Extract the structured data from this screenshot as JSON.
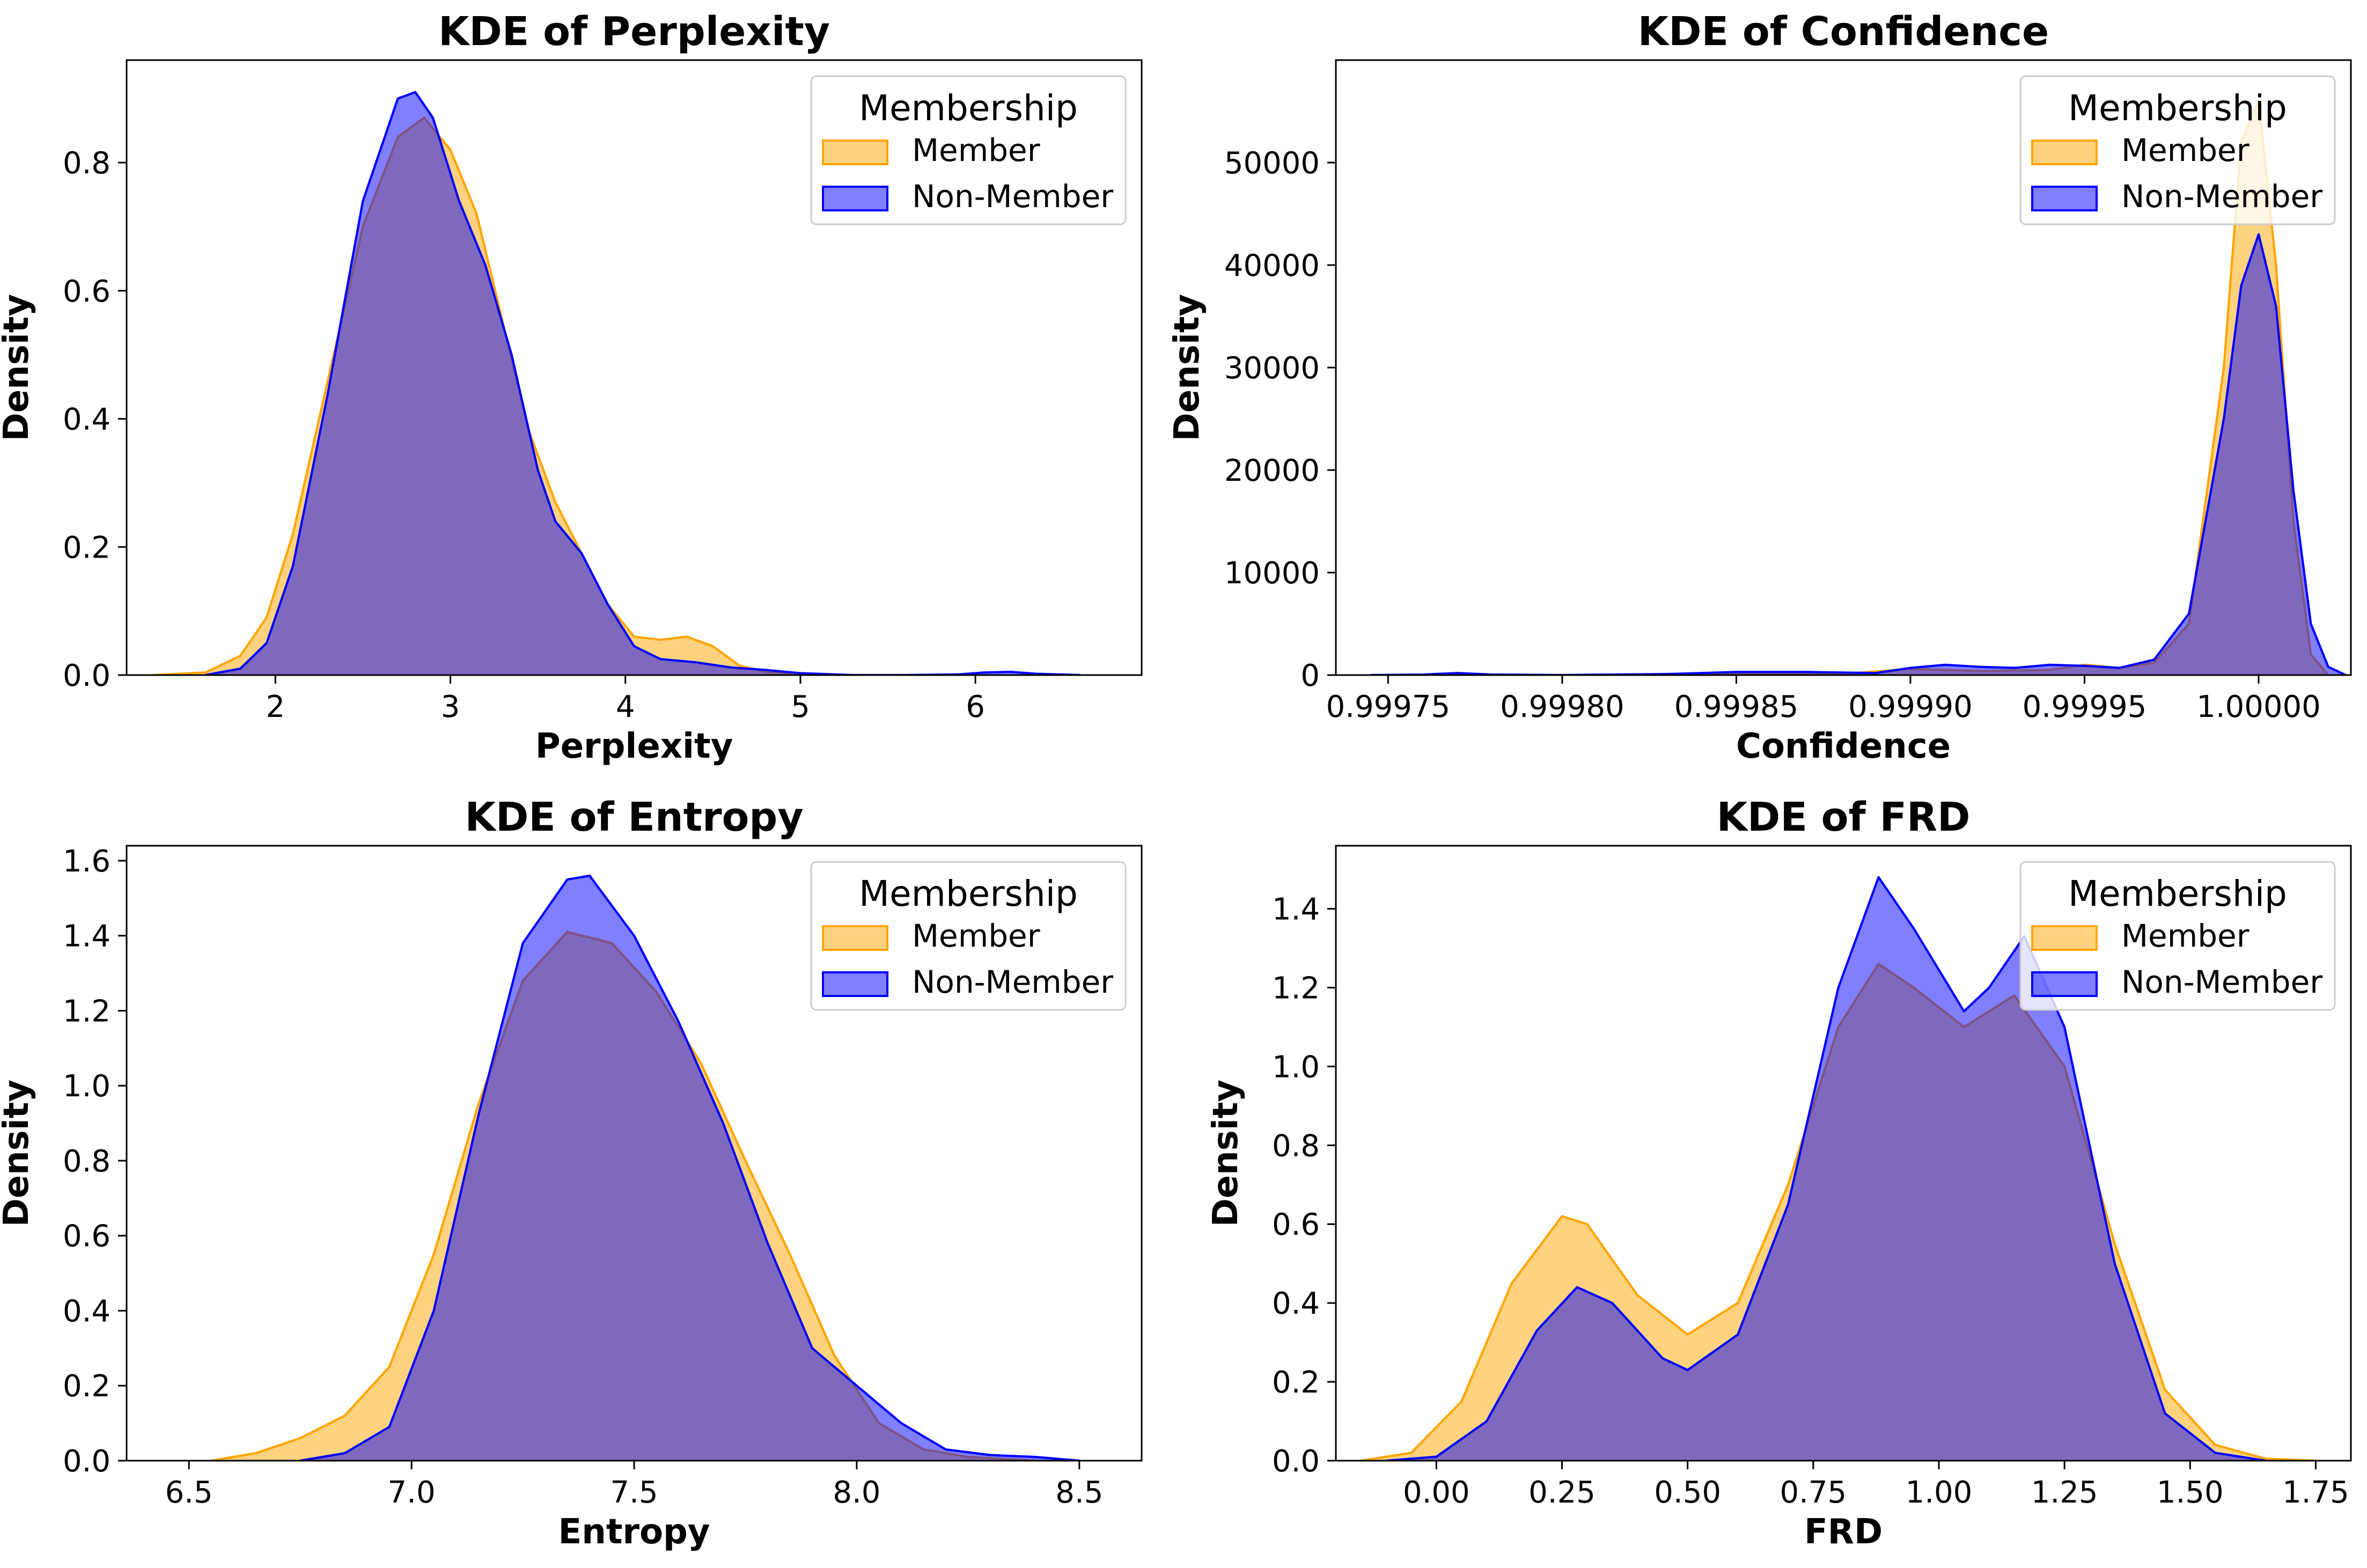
{
  "colors": {
    "member": "#FFA500",
    "non_member": "#0000FF"
  },
  "chart_data": [
    {
      "type": "area",
      "title": "KDE of Perplexity",
      "xlabel": "Perplexity",
      "ylabel": "Density",
      "xlim": [
        1.15,
        6.95
      ],
      "ylim": [
        0,
        0.96
      ],
      "xticks": [
        2,
        3,
        4,
        5,
        6
      ],
      "xtick_labels": [
        "2",
        "3",
        "4",
        "5",
        "6"
      ],
      "yticks": [
        0.0,
        0.2,
        0.4,
        0.6,
        0.8
      ],
      "ytick_labels": [
        "0.0",
        "0.2",
        "0.4",
        "0.6",
        "0.8"
      ],
      "legend": {
        "title": "Membership",
        "placement": "top-right"
      },
      "grid": false,
      "series": [
        {
          "name": "Member",
          "color": "#FFA500",
          "x": [
            1.3,
            1.6,
            1.8,
            1.95,
            2.1,
            2.3,
            2.5,
            2.7,
            2.85,
            3.0,
            3.15,
            3.3,
            3.45,
            3.6,
            3.75,
            3.9,
            4.05,
            4.2,
            4.35,
            4.5,
            4.65,
            4.8,
            5.0,
            5.3
          ],
          "y": [
            0.0,
            0.004,
            0.03,
            0.09,
            0.22,
            0.46,
            0.7,
            0.84,
            0.87,
            0.82,
            0.72,
            0.55,
            0.38,
            0.27,
            0.19,
            0.11,
            0.06,
            0.055,
            0.06,
            0.045,
            0.015,
            0.005,
            0.002,
            0.0
          ]
        },
        {
          "name": "Non-Member",
          "color": "#0000FF",
          "x": [
            1.6,
            1.8,
            1.95,
            2.1,
            2.3,
            2.5,
            2.7,
            2.8,
            2.9,
            3.05,
            3.2,
            3.35,
            3.5,
            3.6,
            3.75,
            3.9,
            4.05,
            4.2,
            4.4,
            4.6,
            4.8,
            5.0,
            5.3,
            5.6,
            5.9,
            6.05,
            6.2,
            6.35,
            6.6
          ],
          "y": [
            0.0,
            0.01,
            0.05,
            0.17,
            0.44,
            0.74,
            0.9,
            0.91,
            0.87,
            0.74,
            0.64,
            0.5,
            0.32,
            0.24,
            0.19,
            0.11,
            0.045,
            0.025,
            0.02,
            0.012,
            0.008,
            0.003,
            0.0,
            0.0,
            0.001,
            0.004,
            0.005,
            0.002,
            0.0
          ]
        }
      ]
    },
    {
      "type": "area",
      "title": "KDE of Confidence",
      "xlabel": "Confidence",
      "ylabel": "Density",
      "xlim": [
        0.999735,
        1.0000265
      ],
      "ylim": [
        0,
        60000
      ],
      "xticks": [
        0.99975,
        0.9998,
        0.99985,
        0.9999,
        0.99995,
        1.0
      ],
      "xtick_labels": [
        "0.99975",
        "0.99980",
        "0.99985",
        "0.99990",
        "0.99995",
        "1.00000"
      ],
      "yticks": [
        0,
        10000,
        20000,
        30000,
        40000,
        50000
      ],
      "ytick_labels": [
        "0",
        "10000",
        "20000",
        "30000",
        "40000",
        "50000"
      ],
      "legend": {
        "title": "Membership",
        "placement": "top-right"
      },
      "grid": false,
      "series": [
        {
          "name": "Member",
          "color": "#FFA500",
          "x": [
            0.99983,
            0.99985,
            0.99988,
            0.9999,
            0.99992,
            0.99994,
            0.99995,
            0.99996,
            0.99997,
            0.99998,
            0.99999,
            0.999995,
            1.0,
            1.000005,
            1.00001,
            1.000015,
            1.00002
          ],
          "y": [
            0,
            150,
            100,
            600,
            400,
            500,
            1000,
            700,
            1200,
            5000,
            30000,
            52000,
            56000,
            40000,
            15000,
            2000,
            0
          ]
        },
        {
          "name": "Non-Member",
          "color": "#0000FF",
          "x": [
            0.999745,
            0.99976,
            0.99977,
            0.99978,
            0.9998,
            0.99983,
            0.99985,
            0.99987,
            0.99989,
            0.9999,
            0.99991,
            0.99992,
            0.99993,
            0.99994,
            0.99995,
            0.99996,
            0.99997,
            0.99998,
            0.99999,
            0.999995,
            1.0,
            1.000005,
            1.00001,
            1.000015,
            1.00002,
            1.000025
          ],
          "y": [
            0,
            50,
            200,
            50,
            0,
            100,
            300,
            300,
            200,
            700,
            1000,
            800,
            700,
            1000,
            900,
            700,
            1500,
            6000,
            25000,
            38000,
            43000,
            36000,
            18000,
            5000,
            800,
            0
          ]
        }
      ]
    },
    {
      "type": "area",
      "title": "KDE of Entropy",
      "xlabel": "Entropy",
      "ylabel": "Density",
      "xlim": [
        6.36,
        8.64
      ],
      "ylim": [
        0,
        1.64
      ],
      "xticks": [
        6.5,
        7.0,
        7.5,
        8.0,
        8.5
      ],
      "xtick_labels": [
        "6.5",
        "7.0",
        "7.5",
        "8.0",
        "8.5"
      ],
      "yticks": [
        0.0,
        0.2,
        0.4,
        0.6,
        0.8,
        1.0,
        1.2,
        1.4,
        1.6
      ],
      "ytick_labels": [
        "0.0",
        "0.2",
        "0.4",
        "0.6",
        "0.8",
        "1.0",
        "1.2",
        "1.4",
        "1.6"
      ],
      "legend": {
        "title": "Membership",
        "placement": "top-right"
      },
      "grid": false,
      "series": [
        {
          "name": "Member",
          "color": "#FFA500",
          "x": [
            6.55,
            6.65,
            6.75,
            6.85,
            6.95,
            7.05,
            7.15,
            7.25,
            7.35,
            7.45,
            7.55,
            7.65,
            7.75,
            7.85,
            7.95,
            8.05,
            8.15,
            8.25,
            8.4
          ],
          "y": [
            0.0,
            0.02,
            0.06,
            0.12,
            0.25,
            0.55,
            0.95,
            1.28,
            1.41,
            1.38,
            1.25,
            1.06,
            0.8,
            0.55,
            0.28,
            0.1,
            0.03,
            0.01,
            0.0
          ]
        },
        {
          "name": "Non-Member",
          "color": "#0000FF",
          "x": [
            6.75,
            6.85,
            6.95,
            7.05,
            7.15,
            7.25,
            7.35,
            7.4,
            7.5,
            7.6,
            7.7,
            7.8,
            7.9,
            8.0,
            8.1,
            8.2,
            8.3,
            8.4,
            8.5
          ],
          "y": [
            0.0,
            0.02,
            0.09,
            0.4,
            0.92,
            1.38,
            1.55,
            1.56,
            1.4,
            1.17,
            0.9,
            0.58,
            0.3,
            0.2,
            0.1,
            0.03,
            0.015,
            0.01,
            0.0
          ]
        }
      ]
    },
    {
      "type": "area",
      "title": "KDE of FRD",
      "xlabel": "FRD",
      "ylabel": "Density",
      "xlim": [
        -0.2,
        1.82
      ],
      "ylim": [
        0,
        1.56
      ],
      "xticks": [
        0.0,
        0.25,
        0.5,
        0.75,
        1.0,
        1.25,
        1.5,
        1.75
      ],
      "xtick_labels": [
        "0.00",
        "0.25",
        "0.50",
        "0.75",
        "1.00",
        "1.25",
        "1.50",
        "1.75"
      ],
      "yticks": [
        0.0,
        0.2,
        0.4,
        0.6,
        0.8,
        1.0,
        1.2,
        1.4
      ],
      "ytick_labels": [
        "0.0",
        "0.2",
        "0.4",
        "0.6",
        "0.8",
        "1.0",
        "1.2",
        "1.4"
      ],
      "legend": {
        "title": "Membership",
        "placement": "top-right"
      },
      "grid": false,
      "series": [
        {
          "name": "Member",
          "color": "#FFA500",
          "x": [
            -0.15,
            -0.05,
            0.05,
            0.15,
            0.25,
            0.3,
            0.4,
            0.5,
            0.6,
            0.7,
            0.8,
            0.88,
            0.95,
            1.05,
            1.15,
            1.25,
            1.35,
            1.45,
            1.55,
            1.65,
            1.75
          ],
          "y": [
            0.0,
            0.02,
            0.15,
            0.45,
            0.62,
            0.6,
            0.42,
            0.32,
            0.4,
            0.7,
            1.1,
            1.26,
            1.2,
            1.1,
            1.18,
            1.0,
            0.55,
            0.18,
            0.04,
            0.005,
            0.0
          ]
        },
        {
          "name": "Non-Member",
          "color": "#0000FF",
          "x": [
            -0.1,
            0.0,
            0.1,
            0.2,
            0.28,
            0.35,
            0.45,
            0.5,
            0.6,
            0.7,
            0.8,
            0.88,
            0.95,
            1.05,
            1.1,
            1.17,
            1.25,
            1.35,
            1.45,
            1.55,
            1.65
          ],
          "y": [
            0.0,
            0.01,
            0.1,
            0.33,
            0.44,
            0.4,
            0.26,
            0.23,
            0.32,
            0.65,
            1.2,
            1.48,
            1.35,
            1.14,
            1.2,
            1.33,
            1.1,
            0.5,
            0.12,
            0.02,
            0.0
          ]
        }
      ]
    }
  ]
}
